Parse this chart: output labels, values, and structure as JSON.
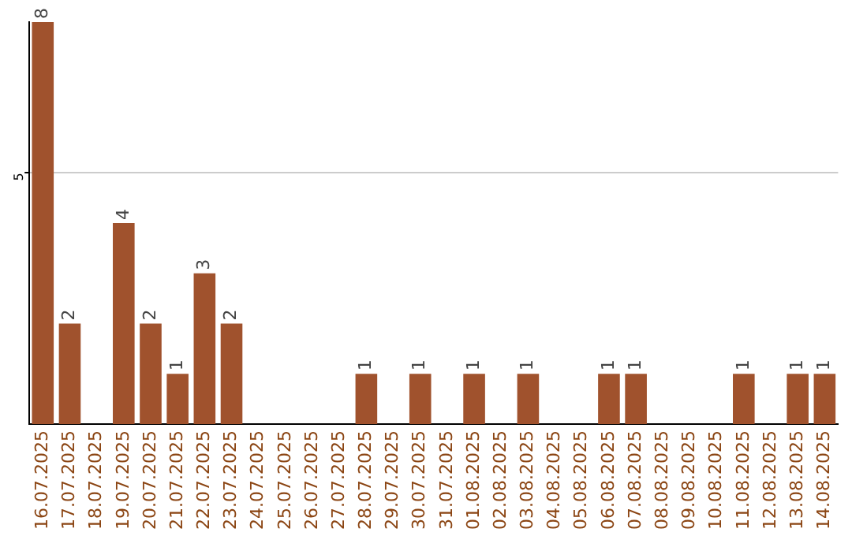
{
  "chart_data": {
    "type": "bar",
    "categories": [
      "16.07.2025",
      "17.07.2025",
      "18.07.2025",
      "19.07.2025",
      "20.07.2025",
      "21.07.2025",
      "22.07.2025",
      "23.07.2025",
      "24.07.2025",
      "25.07.2025",
      "26.07.2025",
      "27.07.2025",
      "28.07.2025",
      "29.07.2025",
      "30.07.2025",
      "31.07.2025",
      "01.08.2025",
      "02.08.2025",
      "03.08.2025",
      "04.08.2025",
      "05.08.2025",
      "06.08.2025",
      "07.08.2025",
      "08.08.2025",
      "09.08.2025",
      "10.08.2025",
      "11.08.2025",
      "12.08.2025",
      "13.08.2025",
      "14.08.2025"
    ],
    "values": [
      8,
      2,
      0,
      4,
      2,
      1,
      3,
      2,
      0,
      0,
      0,
      0,
      1,
      0,
      1,
      0,
      1,
      0,
      1,
      0,
      0,
      1,
      1,
      0,
      0,
      0,
      1,
      0,
      1,
      1
    ],
    "value_labels": [
      "8",
      "2",
      null,
      "4",
      "2",
      "1",
      "3",
      "2",
      null,
      null,
      null,
      null,
      "1",
      null,
      "1",
      null,
      "1",
      null,
      "1",
      null,
      null,
      "1",
      "1",
      null,
      null,
      null,
      "1",
      null,
      "1",
      "1"
    ],
    "color": "#a0522d",
    "ylim": [
      0,
      8
    ],
    "yticks": [
      5
    ],
    "grid": "y",
    "legend": false
  }
}
